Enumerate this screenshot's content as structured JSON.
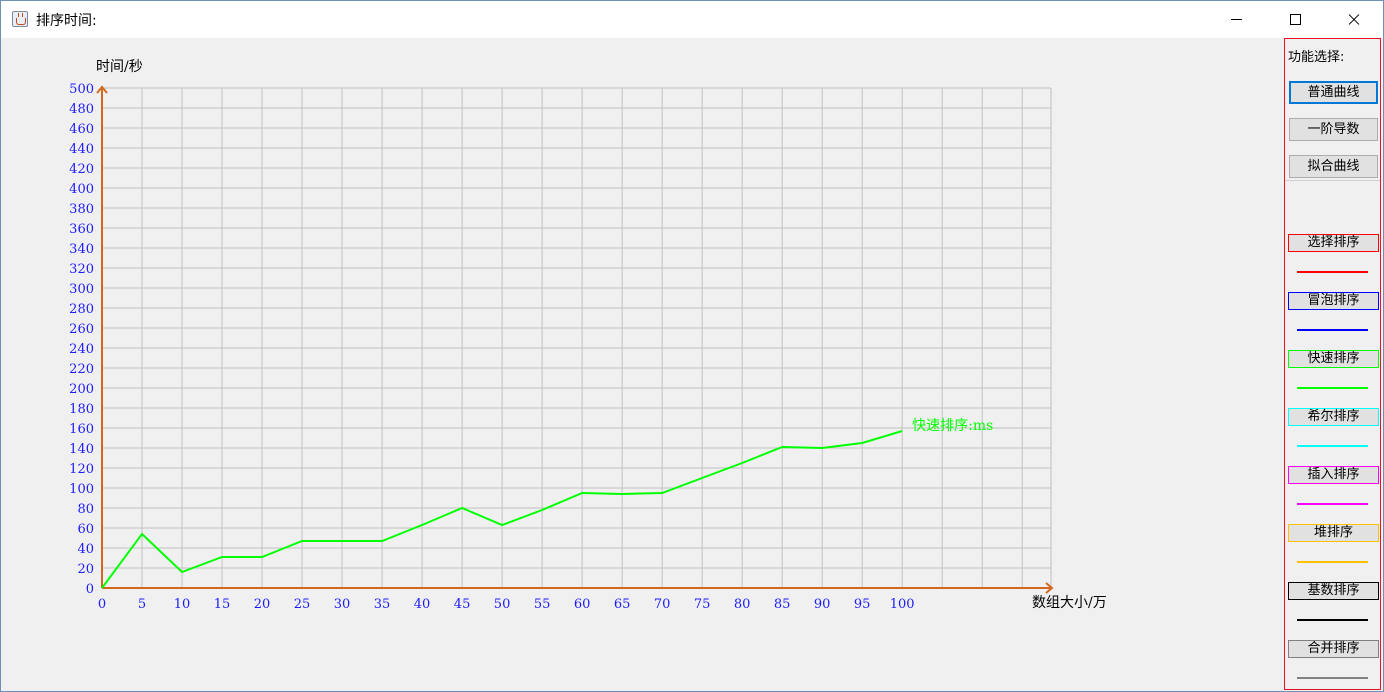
{
  "window": {
    "title": "排序时间:"
  },
  "chart_data": {
    "type": "line",
    "ylabel": "时间/秒",
    "xlabel": "数组大小/万",
    "ylim": [
      0,
      500
    ],
    "xlim": [
      0,
      115
    ],
    "grid": true,
    "y_ticks": [
      "0",
      "20",
      "40",
      "60",
      "80",
      "100",
      "120",
      "140",
      "160",
      "180",
      "200",
      "220",
      "240",
      "260",
      "280",
      "300",
      "320",
      "340",
      "360",
      "380",
      "400",
      "420",
      "440",
      "460",
      "480",
      "500"
    ],
    "x_ticks": [
      "0",
      "5",
      "10",
      "15",
      "20",
      "25",
      "30",
      "35",
      "40",
      "45",
      "50",
      "55",
      "60",
      "65",
      "70",
      "75",
      "80",
      "85",
      "90",
      "95",
      "100"
    ],
    "axis_color": "#d2691e",
    "label_color": "#1c1cff",
    "series": [
      {
        "name": "快速排序:ms",
        "color": "#00ff00",
        "x": [
          0,
          5,
          10,
          15,
          20,
          25,
          30,
          35,
          40,
          45,
          50,
          55,
          60,
          65,
          70,
          75,
          80,
          85,
          90,
          95,
          100
        ],
        "values": [
          0,
          54,
          16,
          31,
          31,
          47,
          47,
          47,
          63,
          80,
          63,
          78,
          95,
          94,
          95,
          110,
          125,
          141,
          140,
          145,
          157
        ]
      }
    ]
  },
  "panel": {
    "title": "功能选择:",
    "functions": [
      {
        "label": "普通曲线",
        "active": true
      },
      {
        "label": "一阶导数",
        "active": false
      },
      {
        "label": "拟合曲线",
        "active": false
      }
    ],
    "sorts": [
      {
        "label": "选择排序",
        "color": "#ff0000"
      },
      {
        "label": "冒泡排序",
        "color": "#0000ff"
      },
      {
        "label": "快速排序",
        "color": "#00ff00"
      },
      {
        "label": "希尔排序",
        "color": "#00ffff"
      },
      {
        "label": "插入排序",
        "color": "#ff00ff"
      },
      {
        "label": "堆排序",
        "color": "#ffc000"
      },
      {
        "label": "基数排序",
        "color": "#000000"
      },
      {
        "label": "合并排序",
        "color": "#808080"
      }
    ]
  }
}
